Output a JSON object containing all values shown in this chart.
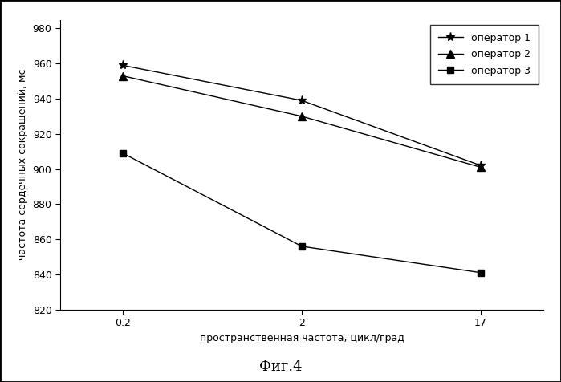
{
  "x_labels": [
    "0.2",
    "2",
    "17"
  ],
  "x_positions": [
    0,
    1,
    2
  ],
  "series": [
    {
      "label": "оператор 1",
      "y": [
        959,
        939,
        902
      ],
      "marker": "*",
      "color": "#000000",
      "linestyle": "-",
      "markersize": 8
    },
    {
      "label": "оператор 2",
      "y": [
        953,
        930,
        901
      ],
      "marker": "^",
      "color": "#000000",
      "linestyle": "-",
      "markersize": 7
    },
    {
      "label": "оператор 3",
      "y": [
        909,
        856,
        841
      ],
      "marker": "s",
      "color": "#000000",
      "linestyle": "-",
      "markersize": 6
    }
  ],
  "ylabel": "частота сердечных сокращений, мс",
  "xlabel": "пространственная частота, цикл/град",
  "ylim": [
    820,
    985
  ],
  "yticks": [
    820,
    840,
    860,
    880,
    900,
    920,
    940,
    960,
    980
  ],
  "figure_caption": "Фиг.4",
  "background_color": "#ffffff",
  "border_color": "#000000"
}
